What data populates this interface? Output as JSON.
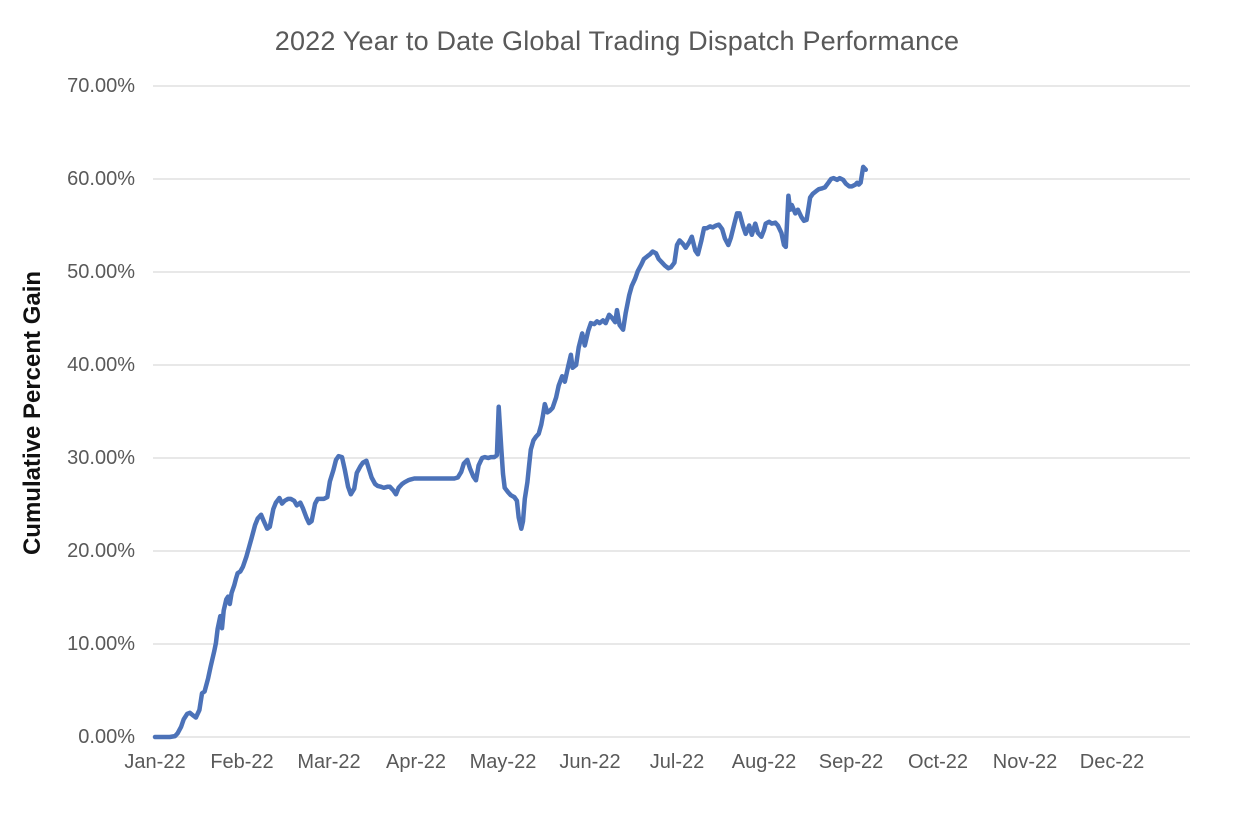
{
  "title": "2022 Year to Date Global Trading Dispatch Performance",
  "colors": {
    "line": "#4C72B8",
    "grid": "#D9D9D9",
    "tick_text": "#595959",
    "title_text": "#595959",
    "y_axis_title_text": "#111111"
  },
  "chart_data": {
    "type": "line",
    "title": "2022 Year to Date Global Trading Dispatch Performance",
    "xlabel": "",
    "ylabel": "Cumulative Percent Gain",
    "x_unit": "fractional months since Jan-1-2022 (0 = Jan-22 tick, 1 = Feb-22 tick, ...)",
    "xlim": [
      0,
      12
    ],
    "ylim": [
      0,
      70
    ],
    "grid": "horizontal",
    "legend": "none",
    "x_tick_labels": [
      "Jan-22",
      "Feb-22",
      "Mar-22",
      "Apr-22",
      "May-22",
      "Jun-22",
      "Jul-22",
      "Aug-22",
      "Sep-22",
      "Oct-22",
      "Nov-22",
      "Dec-22"
    ],
    "y_tick_labels": [
      "0.00%",
      "10.00%",
      "20.00%",
      "30.00%",
      "40.00%",
      "50.00%",
      "60.00%",
      "70.00%"
    ],
    "y_tick_values": [
      0,
      10,
      20,
      30,
      40,
      50,
      60,
      70
    ],
    "series": [
      {
        "name": "Cumulative Percent Gain",
        "color": "#4C72B8",
        "points": [
          [
            0,
            0
          ],
          [
            0.06,
            0
          ],
          [
            0.11,
            0
          ],
          [
            0.17,
            0
          ],
          [
            0.23,
            0.1
          ],
          [
            0.26,
            0.4
          ],
          [
            0.3,
            1.1
          ],
          [
            0.33,
            1.9
          ],
          [
            0.37,
            2.5
          ],
          [
            0.4,
            2.6
          ],
          [
            0.44,
            2.3
          ],
          [
            0.47,
            2.1
          ],
          [
            0.51,
            2.9
          ],
          [
            0.54,
            4.7
          ],
          [
            0.57,
            4.9
          ],
          [
            0.61,
            6.3
          ],
          [
            0.64,
            7.6
          ],
          [
            0.68,
            9.2
          ],
          [
            0.7,
            10.1
          ],
          [
            0.72,
            11.6
          ],
          [
            0.75,
            13
          ],
          [
            0.77,
            11.7
          ],
          [
            0.79,
            13.6
          ],
          [
            0.82,
            14.8
          ],
          [
            0.84,
            15.1
          ],
          [
            0.86,
            14.3
          ],
          [
            0.88,
            15.5
          ],
          [
            0.91,
            16.3
          ],
          [
            0.93,
            17
          ],
          [
            0.95,
            17.6
          ],
          [
            0.98,
            17.8
          ],
          [
            1.01,
            18.3
          ],
          [
            1.05,
            19.4
          ],
          [
            1.08,
            20.4
          ],
          [
            1.11,
            21.4
          ],
          [
            1.15,
            22.8
          ],
          [
            1.18,
            23.5
          ],
          [
            1.22,
            23.9
          ],
          [
            1.25,
            23.2
          ],
          [
            1.29,
            22.4
          ],
          [
            1.32,
            22.6
          ],
          [
            1.36,
            24.5
          ],
          [
            1.39,
            25.2
          ],
          [
            1.43,
            25.7
          ],
          [
            1.46,
            25.1
          ],
          [
            1.49,
            25.4
          ],
          [
            1.53,
            25.6
          ],
          [
            1.56,
            25.6
          ],
          [
            1.6,
            25.4
          ],
          [
            1.63,
            24.9
          ],
          [
            1.67,
            25.2
          ],
          [
            1.7,
            24.6
          ],
          [
            1.74,
            23.6
          ],
          [
            1.77,
            23
          ],
          [
            1.8,
            23.2
          ],
          [
            1.84,
            25.1
          ],
          [
            1.87,
            25.6
          ],
          [
            1.91,
            25.6
          ],
          [
            1.94,
            25.6
          ],
          [
            1.98,
            25.8
          ],
          [
            2.01,
            27.5
          ],
          [
            2.05,
            28.7
          ],
          [
            2.08,
            29.8
          ],
          [
            2.11,
            30.2
          ],
          [
            2.15,
            30.1
          ],
          [
            2.18,
            28.8
          ],
          [
            2.22,
            26.9
          ],
          [
            2.25,
            26.1
          ],
          [
            2.29,
            26.7
          ],
          [
            2.32,
            28.4
          ],
          [
            2.36,
            29.1
          ],
          [
            2.39,
            29.5
          ],
          [
            2.43,
            29.7
          ],
          [
            2.46,
            28.8
          ],
          [
            2.49,
            27.9
          ],
          [
            2.53,
            27.2
          ],
          [
            2.56,
            27
          ],
          [
            2.6,
            26.9
          ],
          [
            2.63,
            26.8
          ],
          [
            2.67,
            26.9
          ],
          [
            2.7,
            26.9
          ],
          [
            2.74,
            26.5
          ],
          [
            2.77,
            26.1
          ],
          [
            2.8,
            26.8
          ],
          [
            2.84,
            27.2
          ],
          [
            2.87,
            27.4
          ],
          [
            2.91,
            27.6
          ],
          [
            2.94,
            27.7
          ],
          [
            2.98,
            27.8
          ],
          [
            3.02,
            27.8
          ],
          [
            3.07,
            27.8
          ],
          [
            3.11,
            27.8
          ],
          [
            3.16,
            27.8
          ],
          [
            3.21,
            27.8
          ],
          [
            3.25,
            27.8
          ],
          [
            3.3,
            27.8
          ],
          [
            3.34,
            27.8
          ],
          [
            3.39,
            27.8
          ],
          [
            3.44,
            27.8
          ],
          [
            3.48,
            27.9
          ],
          [
            3.52,
            28.5
          ],
          [
            3.55,
            29.4
          ],
          [
            3.59,
            29.8
          ],
          [
            3.62,
            28.9
          ],
          [
            3.66,
            28
          ],
          [
            3.69,
            27.6
          ],
          [
            3.72,
            29.2
          ],
          [
            3.76,
            30
          ],
          [
            3.79,
            30.1
          ],
          [
            3.83,
            30
          ],
          [
            3.86,
            30.1
          ],
          [
            3.9,
            30.1
          ],
          [
            3.93,
            30.3
          ],
          [
            3.95,
            35.5
          ],
          [
            3.98,
            31
          ],
          [
            4,
            28.3
          ],
          [
            4.02,
            26.8
          ],
          [
            4.06,
            26.3
          ],
          [
            4.09,
            26
          ],
          [
            4.13,
            25.8
          ],
          [
            4.16,
            25.4
          ],
          [
            4.18,
            23.6
          ],
          [
            4.21,
            22.4
          ],
          [
            4.23,
            23.2
          ],
          [
            4.25,
            25.6
          ],
          [
            4.28,
            27.4
          ],
          [
            4.3,
            29.2
          ],
          [
            4.32,
            30.9
          ],
          [
            4.35,
            31.9
          ],
          [
            4.38,
            32.3
          ],
          [
            4.41,
            32.6
          ],
          [
            4.44,
            33.6
          ],
          [
            4.46,
            34.6
          ],
          [
            4.48,
            35.8
          ],
          [
            4.51,
            34.9
          ],
          [
            4.54,
            35.1
          ],
          [
            4.57,
            35.4
          ],
          [
            4.61,
            36.5
          ],
          [
            4.64,
            37.8
          ],
          [
            4.68,
            38.8
          ],
          [
            4.71,
            38.2
          ],
          [
            4.75,
            39.9
          ],
          [
            4.78,
            41.1
          ],
          [
            4.8,
            39.7
          ],
          [
            4.84,
            40
          ],
          [
            4.87,
            41.9
          ],
          [
            4.91,
            43.4
          ],
          [
            4.94,
            42.1
          ],
          [
            4.98,
            43.7
          ],
          [
            5.01,
            44.5
          ],
          [
            5.05,
            44.4
          ],
          [
            5.08,
            44.7
          ],
          [
            5.11,
            44.5
          ],
          [
            5.15,
            44.8
          ],
          [
            5.18,
            44.5
          ],
          [
            5.22,
            45.4
          ],
          [
            5.25,
            45.1
          ],
          [
            5.29,
            44.6
          ],
          [
            5.31,
            45.9
          ],
          [
            5.34,
            44.3
          ],
          [
            5.38,
            43.8
          ],
          [
            5.41,
            45.6
          ],
          [
            5.45,
            47.5
          ],
          [
            5.48,
            48.5
          ],
          [
            5.52,
            49.3
          ],
          [
            5.55,
            50.1
          ],
          [
            5.59,
            50.8
          ],
          [
            5.62,
            51.4
          ],
          [
            5.66,
            51.7
          ],
          [
            5.69,
            51.9
          ],
          [
            5.72,
            52.2
          ],
          [
            5.76,
            52
          ],
          [
            5.79,
            51.4
          ],
          [
            5.83,
            51
          ],
          [
            5.86,
            50.7
          ],
          [
            5.9,
            50.4
          ],
          [
            5.93,
            50.5
          ],
          [
            5.97,
            51
          ],
          [
            6,
            52.9
          ],
          [
            6.03,
            53.4
          ],
          [
            6.07,
            53
          ],
          [
            6.1,
            52.6
          ],
          [
            6.14,
            53.2
          ],
          [
            6.17,
            53.8
          ],
          [
            6.21,
            52.3
          ],
          [
            6.24,
            51.9
          ],
          [
            6.28,
            53.4
          ],
          [
            6.31,
            54.7
          ],
          [
            6.34,
            54.7
          ],
          [
            6.38,
            54.9
          ],
          [
            6.41,
            54.8
          ],
          [
            6.45,
            55
          ],
          [
            6.48,
            55.1
          ],
          [
            6.52,
            54.6
          ],
          [
            6.55,
            53.6
          ],
          [
            6.59,
            52.9
          ],
          [
            6.62,
            53.7
          ],
          [
            6.66,
            55.2
          ],
          [
            6.69,
            56.3
          ],
          [
            6.72,
            56.3
          ],
          [
            6.76,
            54.9
          ],
          [
            6.79,
            54.1
          ],
          [
            6.83,
            55
          ],
          [
            6.86,
            54
          ],
          [
            6.9,
            55.2
          ],
          [
            6.93,
            54.2
          ],
          [
            6.97,
            53.8
          ],
          [
            7,
            54.5
          ],
          [
            7.02,
            55.2
          ],
          [
            7.06,
            55.4
          ],
          [
            7.09,
            55.2
          ],
          [
            7.13,
            55.3
          ],
          [
            7.16,
            55
          ],
          [
            7.2,
            54.2
          ],
          [
            7.23,
            52.9
          ],
          [
            7.25,
            52.7
          ],
          [
            7.28,
            58.2
          ],
          [
            7.3,
            56.7
          ],
          [
            7.32,
            57.2
          ],
          [
            7.36,
            56.3
          ],
          [
            7.39,
            56.7
          ],
          [
            7.43,
            55.9
          ],
          [
            7.46,
            55.5
          ],
          [
            7.49,
            55.6
          ],
          [
            7.53,
            58
          ],
          [
            7.56,
            58.4
          ],
          [
            7.6,
            58.7
          ],
          [
            7.63,
            58.9
          ],
          [
            7.67,
            59
          ],
          [
            7.7,
            59.1
          ],
          [
            7.74,
            59.6
          ],
          [
            7.77,
            60
          ],
          [
            7.8,
            60.1
          ],
          [
            7.84,
            59.9
          ],
          [
            7.87,
            60.1
          ],
          [
            7.91,
            59.9
          ],
          [
            7.94,
            59.5
          ],
          [
            7.98,
            59.2
          ],
          [
            8.01,
            59.2
          ],
          [
            8.05,
            59.4
          ],
          [
            8.07,
            59.6
          ],
          [
            8.09,
            59.4
          ],
          [
            8.11,
            59.6
          ],
          [
            8.14,
            61.3
          ],
          [
            8.17,
            61
          ]
        ]
      }
    ]
  }
}
